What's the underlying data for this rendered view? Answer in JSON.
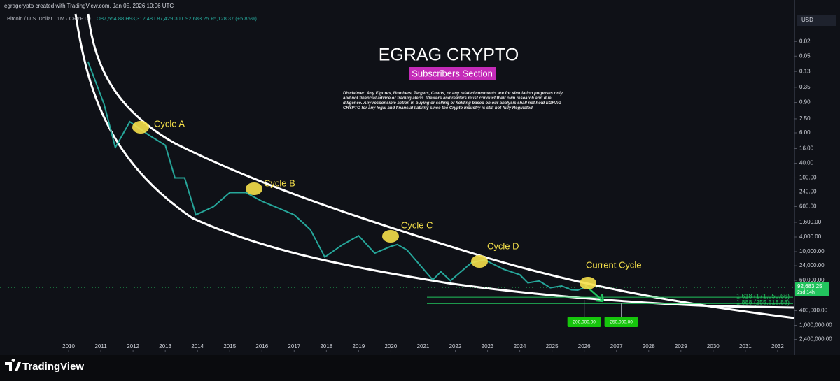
{
  "header": "egragcrypto created with TradingView.com, Jan 05, 2026 10:06 UTC",
  "symbol": "Bitcoin / U.S. Dollar · 1M · CRYPTO",
  "ohlc": "O87,554.88 H93,312.48 L87,429.30 C92,683.25 +5,128.37 (+5.86%)",
  "currency": "USD",
  "overlay_title": "EGRAG CRYPTO",
  "overlay_subtitle": "Subscribers Section",
  "disclaimer": "Disclaimer: Any Figures, Numbers, Targets, Charts, or any related comments are for simulation purposes only and not financial advice or trading alerts. Viewers and readers must conduct their own research and due diligence. Any responsible action in buying or selling or holding based on our analysis shall not hold EGRAG CRYPTO for any legal and financial liability since the Crypto industry is still not fully Regulated.",
  "brand": "TradingView",
  "chart_data": {
    "type": "line",
    "log_scale": true,
    "y_inverted": true,
    "xlim": [
      2007.87,
      2032.48
    ],
    "ylim": [
      0.0033,
      4500000
    ],
    "xticks": [
      2010,
      2011,
      2012,
      2013,
      2014,
      2015,
      2016,
      2017,
      2018,
      2019,
      2020,
      2021,
      2022,
      2023,
      2024,
      2025,
      2026,
      2027,
      2028,
      2029,
      2030,
      2031,
      2032
    ],
    "yticks": [
      0.02,
      0.05,
      0.13,
      0.35,
      {
        "value": 0.9,
        "label": "0.90"
      },
      {
        "value": 2.5,
        "label": "2.50"
      },
      {
        "value": 6,
        "label": "6.00"
      },
      {
        "value": 16,
        "label": "16.00"
      },
      {
        "value": 40,
        "label": "40.00"
      },
      {
        "value": 100,
        "label": "100.00"
      },
      {
        "value": 240,
        "label": "240.00"
      },
      {
        "value": 600,
        "label": "600.00"
      },
      {
        "value": 1600,
        "label": "1,600.00"
      },
      {
        "value": 4000,
        "label": "4,000.00"
      },
      {
        "value": 10000,
        "label": "10,000.00"
      },
      {
        "value": 24000,
        "label": "24,000.00"
      },
      {
        "value": 60000,
        "label": "60,000.00"
      },
      {
        "value": 400000,
        "label": "400,000.00"
      },
      {
        "value": 1000000,
        "label": "1,000,000.00"
      },
      {
        "value": 2400000,
        "label": "2,400,000.00"
      }
    ],
    "series": [
      {
        "color": "#26a69a",
        "x": [
          2010.6,
          2011.1,
          2011.45,
          2011.9,
          2012.5,
          2013.0,
          2013.3,
          2013.6,
          2013.95,
          2014.5,
          2015.0,
          2015.5,
          2016.0,
          2016.5,
          2017.0,
          2017.5,
          2017.95,
          2018.5,
          2019.0,
          2019.5,
          2020.0,
          2020.2,
          2020.5,
          2021.0,
          2021.3,
          2021.55,
          2021.85,
          2022.5,
          2022.9,
          2023.5,
          2024.0,
          2024.25,
          2024.6,
          2024.95,
          2025.3,
          2025.6,
          2025.8,
          2026.01
        ],
        "values": [
          0.07,
          1,
          15,
          3,
          7,
          13,
          100,
          100,
          1000,
          600,
          250,
          250,
          430,
          650,
          1000,
          2500,
          14000,
          6500,
          3700,
          11000,
          7200,
          6400,
          9000,
          29000,
          58000,
          35000,
          61000,
          20000,
          16500,
          30000,
          42000,
          70000,
          62000,
          95000,
          85000,
          108000,
          110000,
          92683.25
        ]
      }
    ],
    "current_price": {
      "value": 92683.25,
      "label": "92,683.25",
      "countdown": "2sd 14h"
    },
    "fib_levels": [
      {
        "value": 171050.66,
        "label": "1.618 (171,050.66)"
      },
      {
        "value": 255618.88,
        "label": "1.888 (255,618.88)"
      }
    ],
    "targets": [
      {
        "x": 2026.0,
        "value": 200000,
        "label": "200,000.00"
      },
      {
        "x": 2027.15,
        "value": 250000,
        "label": "250,000.00"
      }
    ],
    "cycles": [
      "Cycle A",
      "Cycle B",
      "Cycle C",
      "Cycle D",
      "Current Cycle"
    ]
  }
}
